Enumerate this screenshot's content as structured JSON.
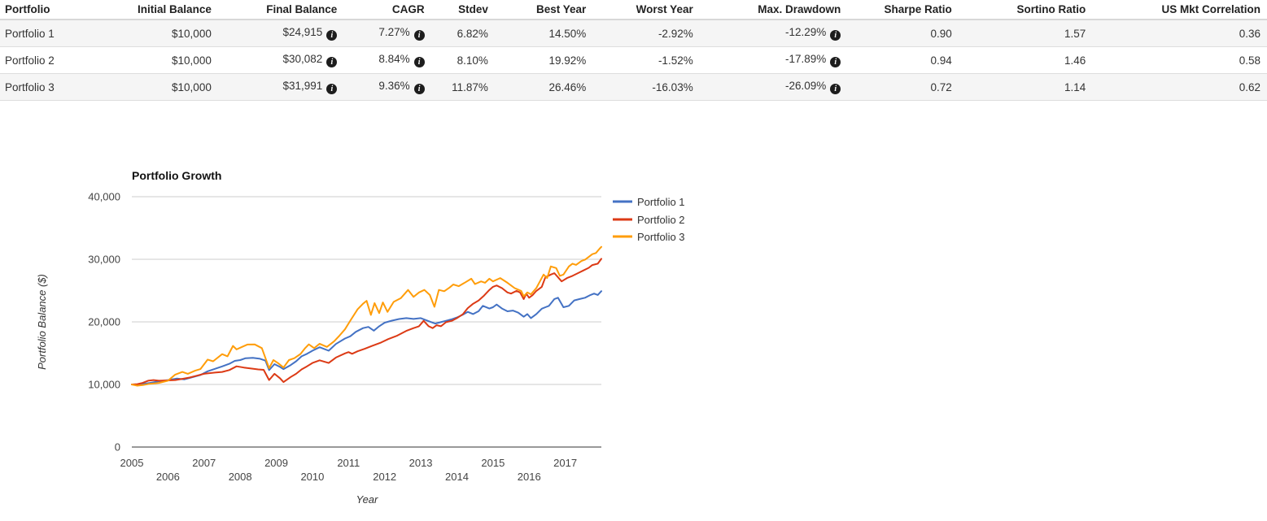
{
  "table": {
    "headers": [
      "Portfolio",
      "Initial Balance",
      "Final Balance",
      "CAGR",
      "Stdev",
      "Best Year",
      "Worst Year",
      "Max. Drawdown",
      "Sharpe Ratio",
      "Sortino Ratio",
      "US Mkt Correlation"
    ],
    "info_icon_glyph": "i",
    "rows": [
      {
        "portfolio": "Portfolio 1",
        "initial_balance": "$10,000",
        "final_balance": "$24,915",
        "cagr": "7.27%",
        "stdev": "6.82%",
        "best_year": "14.50%",
        "worst_year": "-2.92%",
        "max_drawdown": "-12.29%",
        "sharpe_ratio": "0.90",
        "sortino_ratio": "1.57",
        "us_mkt_correlation": "0.36"
      },
      {
        "portfolio": "Portfolio 2",
        "initial_balance": "$10,000",
        "final_balance": "$30,082",
        "cagr": "8.84%",
        "stdev": "8.10%",
        "best_year": "19.92%",
        "worst_year": "-1.52%",
        "max_drawdown": "-17.89%",
        "sharpe_ratio": "0.94",
        "sortino_ratio": "1.46",
        "us_mkt_correlation": "0.58"
      },
      {
        "portfolio": "Portfolio 3",
        "initial_balance": "$10,000",
        "final_balance": "$31,991",
        "cagr": "9.36%",
        "stdev": "11.87%",
        "best_year": "26.46%",
        "worst_year": "-16.03%",
        "max_drawdown": "-26.09%",
        "sharpe_ratio": "0.72",
        "sortino_ratio": "1.14",
        "us_mkt_correlation": "0.62"
      }
    ]
  },
  "chart_data": {
    "type": "line",
    "title": "Portfolio Growth",
    "xlabel": "Year",
    "ylabel": "Portfolio Balance ($)",
    "x_range": [
      2005,
      2018
    ],
    "ylim": [
      0,
      40000
    ],
    "grid": true,
    "legend_position": "right",
    "grid_color": "#cccccc",
    "axis_color": "#333333",
    "y_ticks": [
      {
        "value": 0,
        "label": "0"
      },
      {
        "value": 10000,
        "label": "10,000"
      },
      {
        "value": 20000,
        "label": "20,000"
      },
      {
        "value": 30000,
        "label": "30,000"
      },
      {
        "value": 40000,
        "label": "40,000"
      }
    ],
    "x_ticks": [
      {
        "year": 2005,
        "label": "2005",
        "row": 1
      },
      {
        "year": 2006,
        "label": "2006",
        "row": 2
      },
      {
        "year": 2007,
        "label": "2007",
        "row": 1
      },
      {
        "year": 2008,
        "label": "2008",
        "row": 2
      },
      {
        "year": 2009,
        "label": "2009",
        "row": 1
      },
      {
        "year": 2010,
        "label": "2010",
        "row": 2
      },
      {
        "year": 2011,
        "label": "2011",
        "row": 1
      },
      {
        "year": 2012,
        "label": "2012",
        "row": 2
      },
      {
        "year": 2013,
        "label": "2013",
        "row": 1
      },
      {
        "year": 2014,
        "label": "2014",
        "row": 2
      },
      {
        "year": 2015,
        "label": "2015",
        "row": 1
      },
      {
        "year": 2016,
        "label": "2016",
        "row": 2
      },
      {
        "year": 2017,
        "label": "2017",
        "row": 1
      }
    ],
    "series": [
      {
        "name": "Portfolio 1",
        "color": "#4472C4",
        "points": [
          [
            2005,
            10000
          ],
          [
            2005.17,
            9900
          ],
          [
            2005.33,
            10100
          ],
          [
            2005.5,
            10250
          ],
          [
            2005.75,
            10500
          ],
          [
            2006,
            10700
          ],
          [
            2006.25,
            10950
          ],
          [
            2006.45,
            10800
          ],
          [
            2006.7,
            11200
          ],
          [
            2006.9,
            11500
          ],
          [
            2007.1,
            12100
          ],
          [
            2007.3,
            12500
          ],
          [
            2007.5,
            12880
          ],
          [
            2007.7,
            13300
          ],
          [
            2007.85,
            13760
          ],
          [
            2008,
            13900
          ],
          [
            2008.15,
            14190
          ],
          [
            2008.35,
            14250
          ],
          [
            2008.55,
            14100
          ],
          [
            2008.7,
            13800
          ],
          [
            2008.8,
            12300
          ],
          [
            2008.95,
            13250
          ],
          [
            2009.1,
            12800
          ],
          [
            2009.2,
            12450
          ],
          [
            2009.4,
            13100
          ],
          [
            2009.55,
            13700
          ],
          [
            2009.7,
            14500
          ],
          [
            2009.85,
            14900
          ],
          [
            2010,
            15390
          ],
          [
            2010.2,
            15950
          ],
          [
            2010.45,
            15390
          ],
          [
            2010.65,
            16470
          ],
          [
            2010.9,
            17340
          ],
          [
            2011.05,
            17700
          ],
          [
            2011.2,
            18400
          ],
          [
            2011.4,
            19000
          ],
          [
            2011.55,
            19200
          ],
          [
            2011.7,
            18600
          ],
          [
            2011.85,
            19300
          ],
          [
            2012,
            19870
          ],
          [
            2012.2,
            20200
          ],
          [
            2012.4,
            20450
          ],
          [
            2012.6,
            20600
          ],
          [
            2012.8,
            20470
          ],
          [
            2013,
            20600
          ],
          [
            2013.25,
            20040
          ],
          [
            2013.4,
            19730
          ],
          [
            2013.55,
            19950
          ],
          [
            2013.7,
            20170
          ],
          [
            2013.85,
            20400
          ],
          [
            2014,
            20700
          ],
          [
            2014.15,
            21100
          ],
          [
            2014.3,
            21600
          ],
          [
            2014.45,
            21250
          ],
          [
            2014.6,
            21700
          ],
          [
            2014.72,
            22560
          ],
          [
            2014.9,
            22130
          ],
          [
            2015,
            22340
          ],
          [
            2015.1,
            22770
          ],
          [
            2015.25,
            22130
          ],
          [
            2015.4,
            21690
          ],
          [
            2015.55,
            21800
          ],
          [
            2015.7,
            21470
          ],
          [
            2015.85,
            20820
          ],
          [
            2015.95,
            21250
          ],
          [
            2016.05,
            20600
          ],
          [
            2016.2,
            21250
          ],
          [
            2016.35,
            22100
          ],
          [
            2016.45,
            22340
          ],
          [
            2016.55,
            22560
          ],
          [
            2016.7,
            23650
          ],
          [
            2016.8,
            23860
          ],
          [
            2016.95,
            22340
          ],
          [
            2017.1,
            22560
          ],
          [
            2017.25,
            23430
          ],
          [
            2017.4,
            23650
          ],
          [
            2017.55,
            23860
          ],
          [
            2017.7,
            24300
          ],
          [
            2017.8,
            24520
          ],
          [
            2017.9,
            24300
          ],
          [
            2018,
            24915
          ]
        ]
      },
      {
        "name": "Portfolio 2",
        "color": "#DC3A15",
        "points": [
          [
            2005,
            10000
          ],
          [
            2005.15,
            10050
          ],
          [
            2005.3,
            10250
          ],
          [
            2005.45,
            10600
          ],
          [
            2005.6,
            10700
          ],
          [
            2005.75,
            10600
          ],
          [
            2006,
            10650
          ],
          [
            2006.2,
            10700
          ],
          [
            2006.4,
            10900
          ],
          [
            2006.6,
            11100
          ],
          [
            2006.8,
            11400
          ],
          [
            2007,
            11700
          ],
          [
            2007.3,
            11900
          ],
          [
            2007.5,
            12000
          ],
          [
            2007.7,
            12300
          ],
          [
            2007.9,
            12900
          ],
          [
            2008.1,
            12700
          ],
          [
            2008.3,
            12540
          ],
          [
            2008.5,
            12400
          ],
          [
            2008.65,
            12340
          ],
          [
            2008.8,
            10700
          ],
          [
            2008.95,
            11700
          ],
          [
            2009.1,
            11000
          ],
          [
            2009.2,
            10380
          ],
          [
            2009.4,
            11200
          ],
          [
            2009.55,
            11700
          ],
          [
            2009.7,
            12400
          ],
          [
            2009.85,
            12900
          ],
          [
            2010,
            13430
          ],
          [
            2010.2,
            13860
          ],
          [
            2010.45,
            13430
          ],
          [
            2010.65,
            14300
          ],
          [
            2010.9,
            14960
          ],
          [
            2011,
            15170
          ],
          [
            2011.1,
            14900
          ],
          [
            2011.25,
            15300
          ],
          [
            2011.45,
            15700
          ],
          [
            2011.65,
            16160
          ],
          [
            2011.9,
            16700
          ],
          [
            2012.1,
            17250
          ],
          [
            2012.35,
            17800
          ],
          [
            2012.6,
            18560
          ],
          [
            2012.8,
            19000
          ],
          [
            2012.95,
            19300
          ],
          [
            2013.08,
            20170
          ],
          [
            2013.22,
            19300
          ],
          [
            2013.33,
            19000
          ],
          [
            2013.44,
            19470
          ],
          [
            2013.56,
            19300
          ],
          [
            2013.7,
            19950
          ],
          [
            2013.86,
            20170
          ],
          [
            2014,
            20600
          ],
          [
            2014.17,
            21250
          ],
          [
            2014.3,
            22200
          ],
          [
            2014.45,
            22900
          ],
          [
            2014.6,
            23400
          ],
          [
            2014.75,
            24200
          ],
          [
            2014.9,
            25100
          ],
          [
            2015,
            25600
          ],
          [
            2015.1,
            25820
          ],
          [
            2015.25,
            25390
          ],
          [
            2015.4,
            24700
          ],
          [
            2015.5,
            24520
          ],
          [
            2015.65,
            24950
          ],
          [
            2015.75,
            24700
          ],
          [
            2015.85,
            23640
          ],
          [
            2015.92,
            24500
          ],
          [
            2016,
            23860
          ],
          [
            2016.1,
            24300
          ],
          [
            2016.2,
            24950
          ],
          [
            2016.35,
            25600
          ],
          [
            2016.45,
            27120
          ],
          [
            2016.6,
            27560
          ],
          [
            2016.7,
            27780
          ],
          [
            2016.9,
            26470
          ],
          [
            2017.05,
            27000
          ],
          [
            2017.2,
            27350
          ],
          [
            2017.35,
            27780
          ],
          [
            2017.5,
            28210
          ],
          [
            2017.65,
            28640
          ],
          [
            2017.75,
            29080
          ],
          [
            2017.9,
            29300
          ],
          [
            2018,
            30082
          ]
        ]
      },
      {
        "name": "Portfolio 3",
        "color": "#FF9D0A",
        "points": [
          [
            2005,
            10000
          ],
          [
            2005.15,
            9800
          ],
          [
            2005.3,
            9900
          ],
          [
            2005.5,
            10100
          ],
          [
            2005.75,
            10250
          ],
          [
            2006,
            10600
          ],
          [
            2006.2,
            11570
          ],
          [
            2006.4,
            12000
          ],
          [
            2006.55,
            11700
          ],
          [
            2006.75,
            12200
          ],
          [
            2006.9,
            12450
          ],
          [
            2007.1,
            13970
          ],
          [
            2007.25,
            13700
          ],
          [
            2007.5,
            14850
          ],
          [
            2007.65,
            14500
          ],
          [
            2007.8,
            16160
          ],
          [
            2007.9,
            15600
          ],
          [
            2008.05,
            16000
          ],
          [
            2008.2,
            16380
          ],
          [
            2008.4,
            16400
          ],
          [
            2008.6,
            15800
          ],
          [
            2008.8,
            12600
          ],
          [
            2008.92,
            13900
          ],
          [
            2009.05,
            13400
          ],
          [
            2009.2,
            12700
          ],
          [
            2009.35,
            13900
          ],
          [
            2009.5,
            14200
          ],
          [
            2009.67,
            14870
          ],
          [
            2009.8,
            15800
          ],
          [
            2009.9,
            16400
          ],
          [
            2010.05,
            15800
          ],
          [
            2010.2,
            16500
          ],
          [
            2010.4,
            16000
          ],
          [
            2010.6,
            16900
          ],
          [
            2010.75,
            17800
          ],
          [
            2010.9,
            18800
          ],
          [
            2011.05,
            20200
          ],
          [
            2011.25,
            22000
          ],
          [
            2011.4,
            22900
          ],
          [
            2011.5,
            23370
          ],
          [
            2011.62,
            21100
          ],
          [
            2011.72,
            23000
          ],
          [
            2011.85,
            21400
          ],
          [
            2011.95,
            23100
          ],
          [
            2012.08,
            21600
          ],
          [
            2012.25,
            23200
          ],
          [
            2012.45,
            23800
          ],
          [
            2012.65,
            25100
          ],
          [
            2012.8,
            24000
          ],
          [
            2012.95,
            24700
          ],
          [
            2013.1,
            25100
          ],
          [
            2013.25,
            24300
          ],
          [
            2013.38,
            22400
          ],
          [
            2013.5,
            25100
          ],
          [
            2013.65,
            24900
          ],
          [
            2013.8,
            25500
          ],
          [
            2013.9,
            25970
          ],
          [
            2014.05,
            25700
          ],
          [
            2014.2,
            26200
          ],
          [
            2014.4,
            26900
          ],
          [
            2014.5,
            26040
          ],
          [
            2014.67,
            26470
          ],
          [
            2014.78,
            26250
          ],
          [
            2014.9,
            26900
          ],
          [
            2015,
            26470
          ],
          [
            2015.2,
            27000
          ],
          [
            2015.4,
            26250
          ],
          [
            2015.5,
            25820
          ],
          [
            2015.6,
            25390
          ],
          [
            2015.78,
            24950
          ],
          [
            2015.85,
            24080
          ],
          [
            2015.95,
            24700
          ],
          [
            2016.05,
            24400
          ],
          [
            2016.2,
            25400
          ],
          [
            2016.3,
            26470
          ],
          [
            2016.4,
            27560
          ],
          [
            2016.5,
            27000
          ],
          [
            2016.6,
            28860
          ],
          [
            2016.75,
            28600
          ],
          [
            2016.85,
            27350
          ],
          [
            2016.95,
            27560
          ],
          [
            2017.1,
            28860
          ],
          [
            2017.2,
            29300
          ],
          [
            2017.3,
            29100
          ],
          [
            2017.45,
            29730
          ],
          [
            2017.55,
            29950
          ],
          [
            2017.65,
            30380
          ],
          [
            2017.75,
            30820
          ],
          [
            2017.85,
            31000
          ],
          [
            2017.95,
            31690
          ],
          [
            2018,
            31991
          ]
        ]
      }
    ]
  }
}
